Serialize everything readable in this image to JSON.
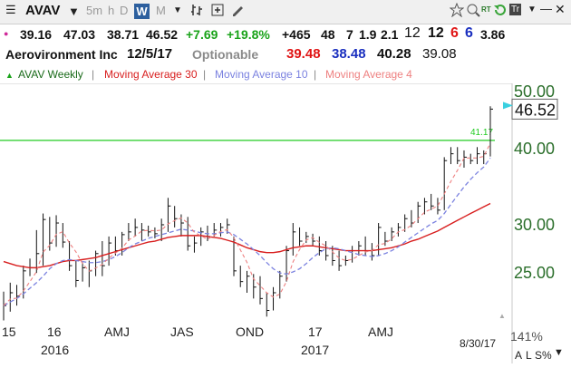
{
  "toolbar": {
    "symbol": "AVAV",
    "period_5m": "5m",
    "period_h": "h",
    "period_d": "D",
    "period_w": "W",
    "period_m": "M",
    "right_rt": "RT",
    "right_t": "Tr"
  },
  "quote": {
    "last": "39.16",
    "high": "47.03",
    "low": "38.71",
    "close": "46.52",
    "change": "+7.69",
    "change_pct": "+19.8%",
    "v1": "+465",
    "v2": "48",
    "v3": "7",
    "v4": "1.9",
    "v5": "2.1",
    "v6": "12",
    "v7": "12",
    "v8": "6",
    "v9": "6",
    "v10": "3.86"
  },
  "info": {
    "company": "Aerovironment Inc",
    "date": "12/5/17",
    "optionable": "Optionable",
    "ma30_val": "39.48",
    "ma10_val": "38.48",
    "ma4_val": "40.28",
    "other_val": "39.08"
  },
  "legend": {
    "series": "AVAV Weekly",
    "ma30": "Moving Average 30",
    "ma10": "Moving Average 10",
    "ma4": "Moving Average 4"
  },
  "colors": {
    "up": "#1aa31a",
    "down": "#e01515",
    "blue": "#1a2fbf",
    "ma30": "#d81e1e",
    "ma10": "#7b82e0",
    "ma4": "#ee8080",
    "hline": "#22cc22"
  },
  "chart_data": {
    "type": "candlestick",
    "yticks": [
      "50.00",
      "40.00",
      "30.00",
      "25.00"
    ],
    "ylim": [
      20,
      52
    ],
    "current_price": "46.52",
    "hline_label": "41.17",
    "hline_value": 41.17,
    "xticks": [
      "15",
      "16",
      "AMJ",
      "JAS",
      "OND",
      "17",
      "AMJ"
    ],
    "year_labels": [
      "2016",
      "2017"
    ],
    "price_bars": [
      {
        "h": 23.2,
        "l": 20.8,
        "c": 22.0
      },
      {
        "h": 24.0,
        "l": 21.5,
        "c": 23.1
      },
      {
        "h": 23.8,
        "l": 22.0,
        "c": 22.8
      },
      {
        "h": 25.6,
        "l": 22.6,
        "c": 25.1
      },
      {
        "h": 26.3,
        "l": 24.6,
        "c": 25.4
      },
      {
        "h": 29.3,
        "l": 24.9,
        "c": 26.8
      },
      {
        "h": 31.2,
        "l": 25.6,
        "c": 30.5
      },
      {
        "h": 30.8,
        "l": 27.1,
        "c": 27.9
      },
      {
        "h": 31.0,
        "l": 27.5,
        "c": 30.1
      },
      {
        "h": 30.1,
        "l": 27.4,
        "c": 28.0
      },
      {
        "h": 28.1,
        "l": 25.1,
        "c": 25.6
      },
      {
        "h": 26.1,
        "l": 23.6,
        "c": 24.2
      },
      {
        "h": 25.9,
        "l": 24.1,
        "c": 25.4
      },
      {
        "h": 26.1,
        "l": 23.6,
        "c": 25.1
      },
      {
        "h": 27.1,
        "l": 24.6,
        "c": 26.8
      },
      {
        "h": 28.1,
        "l": 24.6,
        "c": 25.6
      },
      {
        "h": 28.6,
        "l": 25.6,
        "c": 27.9
      },
      {
        "h": 28.6,
        "l": 26.6,
        "c": 27.1
      },
      {
        "h": 29.1,
        "l": 26.6,
        "c": 28.8
      },
      {
        "h": 30.1,
        "l": 28.1,
        "c": 29.1
      },
      {
        "h": 30.6,
        "l": 28.6,
        "c": 29.6
      },
      {
        "h": 30.1,
        "l": 28.1,
        "c": 29.3
      },
      {
        "h": 29.8,
        "l": 28.6,
        "c": 29.1
      },
      {
        "h": 29.6,
        "l": 28.4,
        "c": 28.9
      },
      {
        "h": 30.6,
        "l": 28.1,
        "c": 29.9
      },
      {
        "h": 33.1,
        "l": 29.1,
        "c": 32.1
      },
      {
        "h": 32.1,
        "l": 29.6,
        "c": 30.6
      },
      {
        "h": 31.1,
        "l": 28.6,
        "c": 30.1
      },
      {
        "h": 30.8,
        "l": 27.1,
        "c": 27.6
      },
      {
        "h": 28.6,
        "l": 26.9,
        "c": 27.9
      },
      {
        "h": 29.6,
        "l": 27.6,
        "c": 29.1
      },
      {
        "h": 29.8,
        "l": 28.1,
        "c": 28.6
      },
      {
        "h": 30.1,
        "l": 28.6,
        "c": 29.3
      },
      {
        "h": 30.1,
        "l": 28.6,
        "c": 29.6
      },
      {
        "h": 30.6,
        "l": 28.9,
        "c": 29.9
      },
      {
        "h": 28.6,
        "l": 24.6,
        "c": 25.1
      },
      {
        "h": 25.6,
        "l": 23.6,
        "c": 24.1
      },
      {
        "h": 25.1,
        "l": 23.1,
        "c": 24.6
      },
      {
        "h": 24.8,
        "l": 22.6,
        "c": 23.6
      },
      {
        "h": 24.6,
        "l": 22.1,
        "c": 22.6
      },
      {
        "h": 23.1,
        "l": 21.1,
        "c": 21.6
      },
      {
        "h": 23.6,
        "l": 21.6,
        "c": 23.1
      },
      {
        "h": 25.1,
        "l": 22.6,
        "c": 24.6
      },
      {
        "h": 27.6,
        "l": 24.1,
        "c": 27.1
      },
      {
        "h": 30.1,
        "l": 26.6,
        "c": 29.1
      },
      {
        "h": 29.6,
        "l": 27.6,
        "c": 28.1
      },
      {
        "h": 29.1,
        "l": 27.9,
        "c": 28.6
      },
      {
        "h": 28.9,
        "l": 27.6,
        "c": 28.1
      },
      {
        "h": 28.6,
        "l": 26.6,
        "c": 27.1
      },
      {
        "h": 28.1,
        "l": 26.1,
        "c": 26.6
      },
      {
        "h": 27.6,
        "l": 25.6,
        "c": 26.1
      },
      {
        "h": 27.1,
        "l": 25.1,
        "c": 25.6
      },
      {
        "h": 26.6,
        "l": 25.6,
        "c": 26.1
      },
      {
        "h": 27.6,
        "l": 25.9,
        "c": 27.1
      },
      {
        "h": 28.1,
        "l": 26.6,
        "c": 27.6
      },
      {
        "h": 28.6,
        "l": 26.6,
        "c": 27.1
      },
      {
        "h": 27.9,
        "l": 26.1,
        "c": 26.6
      },
      {
        "h": 30.1,
        "l": 26.6,
        "c": 29.6
      },
      {
        "h": 29.1,
        "l": 27.6,
        "c": 28.1
      },
      {
        "h": 29.6,
        "l": 28.1,
        "c": 29.1
      },
      {
        "h": 30.1,
        "l": 28.6,
        "c": 29.6
      },
      {
        "h": 31.1,
        "l": 29.1,
        "c": 30.6
      },
      {
        "h": 31.6,
        "l": 29.6,
        "c": 30.1
      },
      {
        "h": 32.6,
        "l": 30.1,
        "c": 32.1
      },
      {
        "h": 33.1,
        "l": 31.1,
        "c": 32.6
      },
      {
        "h": 33.6,
        "l": 31.6,
        "c": 32.1
      },
      {
        "h": 33.1,
        "l": 31.1,
        "c": 31.6
      },
      {
        "h": 38.6,
        "l": 31.6,
        "c": 38.1
      },
      {
        "h": 40.1,
        "l": 37.6,
        "c": 39.1
      },
      {
        "h": 40.1,
        "l": 37.6,
        "c": 38.1
      },
      {
        "h": 39.6,
        "l": 37.1,
        "c": 38.6
      },
      {
        "h": 39.1,
        "l": 37.6,
        "c": 38.1
      },
      {
        "h": 40.1,
        "l": 37.6,
        "c": 39.1
      },
      {
        "h": 39.6,
        "l": 37.6,
        "c": 39.1
      },
      {
        "h": 47.03,
        "l": 38.71,
        "c": 46.52
      }
    ],
    "ma30": [
      26.0,
      25.8,
      25.6,
      25.5,
      25.4,
      25.4,
      25.5,
      25.6,
      25.8,
      26.0,
      26.1,
      26.1,
      26.2,
      26.3,
      26.4,
      26.6,
      26.8,
      27.0,
      27.2,
      27.4,
      27.6,
      27.8,
      28.0,
      28.1,
      28.3,
      28.5,
      28.6,
      28.7,
      28.7,
      28.7,
      28.7,
      28.6,
      28.5,
      28.4,
      28.2,
      28.0,
      27.7,
      27.4,
      27.2,
      27.0,
      26.9,
      26.9,
      27.0,
      27.2,
      27.4,
      27.5,
      27.6,
      27.6,
      27.5,
      27.4,
      27.3,
      27.2,
      27.1,
      27.1,
      27.1,
      27.1,
      27.1,
      27.2,
      27.3,
      27.4,
      27.6,
      27.8,
      28.1,
      28.3,
      28.6,
      28.9,
      29.2,
      29.6,
      30.0,
      30.4,
      30.8,
      31.2,
      31.6,
      32.0,
      32.4
    ],
    "ma10": [
      22.0,
      22.3,
      22.6,
      23.0,
      23.5,
      24.0,
      24.6,
      25.3,
      25.8,
      26.1,
      26.2,
      26.1,
      26.0,
      25.9,
      25.9,
      26.0,
      26.2,
      26.5,
      26.9,
      27.4,
      27.8,
      28.1,
      28.4,
      28.6,
      28.8,
      29.0,
      29.2,
      29.4,
      29.3,
      29.2,
      29.0,
      28.9,
      28.9,
      29.0,
      29.1,
      28.8,
      28.3,
      27.8,
      27.2,
      26.6,
      25.9,
      25.3,
      24.9,
      24.8,
      25.0,
      25.3,
      25.8,
      26.4,
      26.9,
      27.3,
      27.4,
      27.3,
      27.1,
      26.9,
      26.7,
      26.6,
      26.5,
      26.6,
      26.8,
      27.1,
      27.5,
      28.0,
      28.5,
      29.0,
      29.5,
      30.0,
      30.4,
      31.2,
      32.3,
      33.4,
      34.5,
      35.5,
      36.4,
      37.2,
      38.48
    ]
  },
  "status": {
    "date": "8/30/17",
    "zoom": "141%",
    "btn_a": "A",
    "btn_l": "L",
    "btn_s": "S%"
  }
}
